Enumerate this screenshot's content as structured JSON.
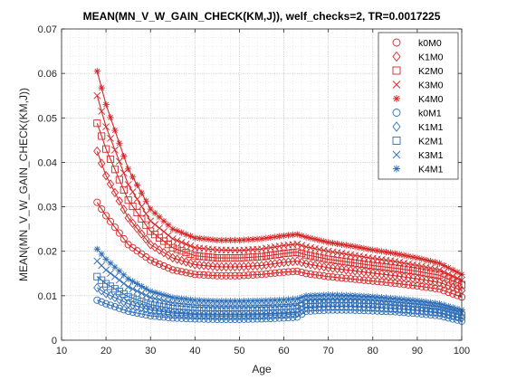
{
  "chart_data": {
    "type": "line",
    "title": "MEAN(MN_V_W_GAIN_CHECK(KM,J)), welf_checks=2, TR=0.0017225",
    "xlabel": "Age",
    "ylabel": "MEAN(MN_V_W_GAIN_CHECK(KM,J))",
    "xlim": [
      10,
      100
    ],
    "ylim": [
      0,
      0.07
    ],
    "xticks": [
      "10",
      "20",
      "30",
      "40",
      "50",
      "60",
      "70",
      "80",
      "90",
      "100"
    ],
    "yticks": [
      "0",
      "0.01",
      "0.02",
      "0.03",
      "0.04",
      "0.05",
      "0.06",
      "0.07"
    ],
    "grid": "major and minor, dotted",
    "legend_position": "top-right",
    "x_start": 18,
    "x_end": 100,
    "colors": {
      "M0": "#d62728",
      "M1": "#2f6fb8"
    },
    "series": [
      {
        "name": "k0M0",
        "marker": "circle",
        "color": "#d62728",
        "points": [
          [
            18,
            0.031
          ],
          [
            20,
            0.028
          ],
          [
            25,
            0.0215
          ],
          [
            30,
            0.018
          ],
          [
            35,
            0.0158
          ],
          [
            40,
            0.0148
          ],
          [
            45,
            0.0145
          ],
          [
            50,
            0.0145
          ],
          [
            55,
            0.0148
          ],
          [
            60,
            0.0153
          ],
          [
            63,
            0.0155
          ],
          [
            65,
            0.015
          ],
          [
            70,
            0.0143
          ],
          [
            75,
            0.0138
          ],
          [
            80,
            0.0133
          ],
          [
            85,
            0.0128
          ],
          [
            90,
            0.0122
          ],
          [
            95,
            0.0115
          ],
          [
            100,
            0.0097
          ]
        ]
      },
      {
        "name": "K1M0",
        "marker": "diamond",
        "color": "#d62728",
        "points": [
          [
            18,
            0.0425
          ],
          [
            20,
            0.037
          ],
          [
            25,
            0.0275
          ],
          [
            30,
            0.0215
          ],
          [
            35,
            0.0185
          ],
          [
            40,
            0.017
          ],
          [
            45,
            0.0165
          ],
          [
            50,
            0.0165
          ],
          [
            55,
            0.0168
          ],
          [
            60,
            0.0175
          ],
          [
            63,
            0.0178
          ],
          [
            65,
            0.0172
          ],
          [
            70,
            0.0163
          ],
          [
            75,
            0.0157
          ],
          [
            80,
            0.0151
          ],
          [
            85,
            0.0145
          ],
          [
            90,
            0.0138
          ],
          [
            95,
            0.013
          ],
          [
            100,
            0.0112
          ]
        ]
      },
      {
        "name": "K2M0",
        "marker": "square",
        "color": "#d62728",
        "points": [
          [
            18,
            0.0488
          ],
          [
            20,
            0.043
          ],
          [
            25,
            0.0315
          ],
          [
            30,
            0.0245
          ],
          [
            35,
            0.0208
          ],
          [
            40,
            0.019
          ],
          [
            45,
            0.0185
          ],
          [
            50,
            0.0185
          ],
          [
            55,
            0.0188
          ],
          [
            60,
            0.0195
          ],
          [
            63,
            0.0198
          ],
          [
            65,
            0.0192
          ],
          [
            70,
            0.0182
          ],
          [
            75,
            0.0175
          ],
          [
            80,
            0.0168
          ],
          [
            85,
            0.0162
          ],
          [
            90,
            0.0155
          ],
          [
            95,
            0.0146
          ],
          [
            100,
            0.0125
          ]
        ]
      },
      {
        "name": "K3M0",
        "marker": "x",
        "color": "#d62728",
        "points": [
          [
            18,
            0.055
          ],
          [
            20,
            0.048
          ],
          [
            25,
            0.035
          ],
          [
            30,
            0.0268
          ],
          [
            35,
            0.0228
          ],
          [
            40,
            0.0208
          ],
          [
            45,
            0.0203
          ],
          [
            50,
            0.0202
          ],
          [
            55,
            0.0205
          ],
          [
            60,
            0.0213
          ],
          [
            63,
            0.0216
          ],
          [
            65,
            0.021
          ],
          [
            70,
            0.02
          ],
          [
            75,
            0.0192
          ],
          [
            80,
            0.0184
          ],
          [
            85,
            0.0177
          ],
          [
            90,
            0.0168
          ],
          [
            95,
            0.0158
          ],
          [
            100,
            0.0135
          ]
        ]
      },
      {
        "name": "K4M0",
        "marker": "star",
        "color": "#d62728",
        "points": [
          [
            18,
            0.0605
          ],
          [
            20,
            0.053
          ],
          [
            25,
            0.0385
          ],
          [
            30,
            0.0295
          ],
          [
            35,
            0.025
          ],
          [
            40,
            0.023
          ],
          [
            45,
            0.0225
          ],
          [
            50,
            0.0225
          ],
          [
            55,
            0.0228
          ],
          [
            60,
            0.0235
          ],
          [
            63,
            0.0238
          ],
          [
            65,
            0.0232
          ],
          [
            70,
            0.022
          ],
          [
            75,
            0.0212
          ],
          [
            80,
            0.0203
          ],
          [
            85,
            0.0195
          ],
          [
            90,
            0.0185
          ],
          [
            95,
            0.0173
          ],
          [
            100,
            0.0148
          ]
        ]
      },
      {
        "name": "k0M1",
        "marker": "circle",
        "color": "#2f6fb8",
        "points": [
          [
            18,
            0.009
          ],
          [
            20,
            0.0082
          ],
          [
            25,
            0.0065
          ],
          [
            30,
            0.0055
          ],
          [
            35,
            0.005
          ],
          [
            40,
            0.0048
          ],
          [
            45,
            0.0047
          ],
          [
            50,
            0.0047
          ],
          [
            55,
            0.0048
          ],
          [
            60,
            0.005
          ],
          [
            63,
            0.0052
          ],
          [
            65,
            0.0065
          ],
          [
            70,
            0.0068
          ],
          [
            75,
            0.0068
          ],
          [
            80,
            0.0066
          ],
          [
            85,
            0.0064
          ],
          [
            90,
            0.006
          ],
          [
            95,
            0.0055
          ],
          [
            100,
            0.0043
          ]
        ]
      },
      {
        "name": "K1M1",
        "marker": "diamond",
        "color": "#2f6fb8",
        "points": [
          [
            18,
            0.0118
          ],
          [
            20,
            0.0105
          ],
          [
            25,
            0.0082
          ],
          [
            30,
            0.0068
          ],
          [
            35,
            0.0061
          ],
          [
            40,
            0.0058
          ],
          [
            45,
            0.0057
          ],
          [
            50,
            0.0057
          ],
          [
            55,
            0.0058
          ],
          [
            60,
            0.006
          ],
          [
            63,
            0.0062
          ],
          [
            65,
            0.0074
          ],
          [
            70,
            0.0076
          ],
          [
            75,
            0.0076
          ],
          [
            80,
            0.0074
          ],
          [
            85,
            0.0071
          ],
          [
            90,
            0.0067
          ],
          [
            95,
            0.0062
          ],
          [
            100,
            0.005
          ]
        ]
      },
      {
        "name": "K2M1",
        "marker": "square",
        "color": "#2f6fb8",
        "points": [
          [
            18,
            0.0143
          ],
          [
            20,
            0.0127
          ],
          [
            25,
            0.0098
          ],
          [
            30,
            0.008
          ],
          [
            35,
            0.0071
          ],
          [
            40,
            0.0067
          ],
          [
            45,
            0.0066
          ],
          [
            50,
            0.0066
          ],
          [
            55,
            0.0067
          ],
          [
            60,
            0.0069
          ],
          [
            63,
            0.0071
          ],
          [
            65,
            0.0082
          ],
          [
            70,
            0.0084
          ],
          [
            75,
            0.0084
          ],
          [
            80,
            0.0082
          ],
          [
            85,
            0.0078
          ],
          [
            90,
            0.0074
          ],
          [
            95,
            0.0068
          ],
          [
            100,
            0.0056
          ]
        ]
      },
      {
        "name": "K3M1",
        "marker": "x",
        "color": "#2f6fb8",
        "points": [
          [
            18,
            0.0178
          ],
          [
            20,
            0.0158
          ],
          [
            25,
            0.012
          ],
          [
            30,
            0.0096
          ],
          [
            35,
            0.0084
          ],
          [
            40,
            0.0079
          ],
          [
            45,
            0.0077
          ],
          [
            50,
            0.0077
          ],
          [
            55,
            0.0078
          ],
          [
            60,
            0.008
          ],
          [
            63,
            0.0082
          ],
          [
            65,
            0.0091
          ],
          [
            70,
            0.0093
          ],
          [
            75,
            0.0093
          ],
          [
            80,
            0.009
          ],
          [
            85,
            0.0086
          ],
          [
            90,
            0.0081
          ],
          [
            95,
            0.0075
          ],
          [
            100,
            0.0062
          ]
        ]
      },
      {
        "name": "K4M1",
        "marker": "star",
        "color": "#2f6fb8",
        "points": [
          [
            18,
            0.0205
          ],
          [
            20,
            0.0182
          ],
          [
            25,
            0.0138
          ],
          [
            30,
            0.011
          ],
          [
            35,
            0.0096
          ],
          [
            40,
            0.009
          ],
          [
            45,
            0.0088
          ],
          [
            50,
            0.0088
          ],
          [
            55,
            0.0089
          ],
          [
            60,
            0.0091
          ],
          [
            63,
            0.0093
          ],
          [
            65,
            0.01
          ],
          [
            70,
            0.0102
          ],
          [
            75,
            0.0101
          ],
          [
            80,
            0.0098
          ],
          [
            85,
            0.0094
          ],
          [
            90,
            0.0089
          ],
          [
            95,
            0.0082
          ],
          [
            100,
            0.0068
          ]
        ]
      }
    ]
  }
}
